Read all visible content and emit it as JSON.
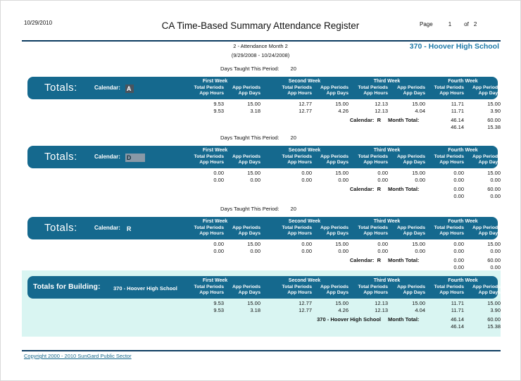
{
  "colors": {
    "band": "#15698e",
    "building_panel": "#d9f5f2",
    "school_accent": "#1d79a8",
    "link": "#17688c",
    "calendar_highlight_dark": "#4a545e",
    "calendar_highlight_gray": "#8999a7"
  },
  "header": {
    "date": "10/29/2010",
    "title": "CA Time-Based Summary Attendance Register",
    "page_label": "Page",
    "page_number": "1",
    "of_label": "of",
    "total_pages": "2",
    "month": "2 - Attendance Month 2",
    "range": "(9/29/2008 - 10/24/2008)",
    "school": "370 - Hoover High School"
  },
  "columns": {
    "weeks": [
      "First Week",
      "Second Week",
      "Third Week",
      "Fourth Week"
    ],
    "left": [
      "Total Periods",
      "App Hours"
    ],
    "right": [
      "App Periods",
      "App Days"
    ]
  },
  "days_taught_label": "Days Taught This Period:",
  "sections": [
    {
      "days_taught": "20",
      "title": "Totals:",
      "calendar_label": "Calendar:",
      "calendar": "A",
      "rows": [
        [
          "9.53",
          "15.00",
          "12.77",
          "15.00",
          "12.13",
          "15.00",
          "11.71",
          "15.00"
        ],
        [
          "9.53",
          "3.18",
          "12.77",
          "4.26",
          "12.13",
          "4.04",
          "11.71",
          "3.90"
        ]
      ],
      "total_left": "Calendar:  R",
      "total_label": "Month Total:",
      "totals": [
        [
          "46.14",
          "60.00"
        ],
        [
          "46.14",
          "15.38"
        ]
      ]
    },
    {
      "days_taught": "20",
      "title": "Totals:",
      "calendar_label": "Calendar:",
      "calendar": "D",
      "rows": [
        [
          "0.00",
          "15.00",
          "0.00",
          "15.00",
          "0.00",
          "15.00",
          "0.00",
          "15.00"
        ],
        [
          "0.00",
          "0.00",
          "0.00",
          "0.00",
          "0.00",
          "0.00",
          "0.00",
          "0.00"
        ]
      ],
      "total_left": "Calendar:  R",
      "total_label": "Month Total:",
      "totals": [
        [
          "0.00",
          "60.00"
        ],
        [
          "0.00",
          "0.00"
        ]
      ]
    },
    {
      "days_taught": "20",
      "title": "Totals:",
      "calendar_label": "Calendar:",
      "calendar": "R",
      "rows": [
        [
          "0.00",
          "15.00",
          "0.00",
          "15.00",
          "0.00",
          "15.00",
          "0.00",
          "15.00"
        ],
        [
          "0.00",
          "0.00",
          "0.00",
          "0.00",
          "0.00",
          "0.00",
          "0.00",
          "0.00"
        ]
      ],
      "total_left": "Calendar:  R",
      "total_label": "Month Total:",
      "totals": [
        [
          "0.00",
          "60.00"
        ],
        [
          "0.00",
          "0.00"
        ]
      ]
    }
  ],
  "building": {
    "title": "Totals for Building:",
    "name": "370 - Hoover High School",
    "rows": [
      [
        "9.53",
        "15.00",
        "12.77",
        "15.00",
        "12.13",
        "15.00",
        "11.71",
        "15.00"
      ],
      [
        "9.53",
        "3.18",
        "12.77",
        "4.26",
        "12.13",
        "4.04",
        "11.71",
        "3.90"
      ]
    ],
    "total_left": "370 - Hoover High School",
    "total_label": "Month Total:",
    "totals": [
      [
        "46.14",
        "60.00"
      ],
      [
        "46.14",
        "15.38"
      ]
    ]
  },
  "footer": {
    "copyright": "Copyright 2000 - 2010 SunGard Public Sector"
  }
}
